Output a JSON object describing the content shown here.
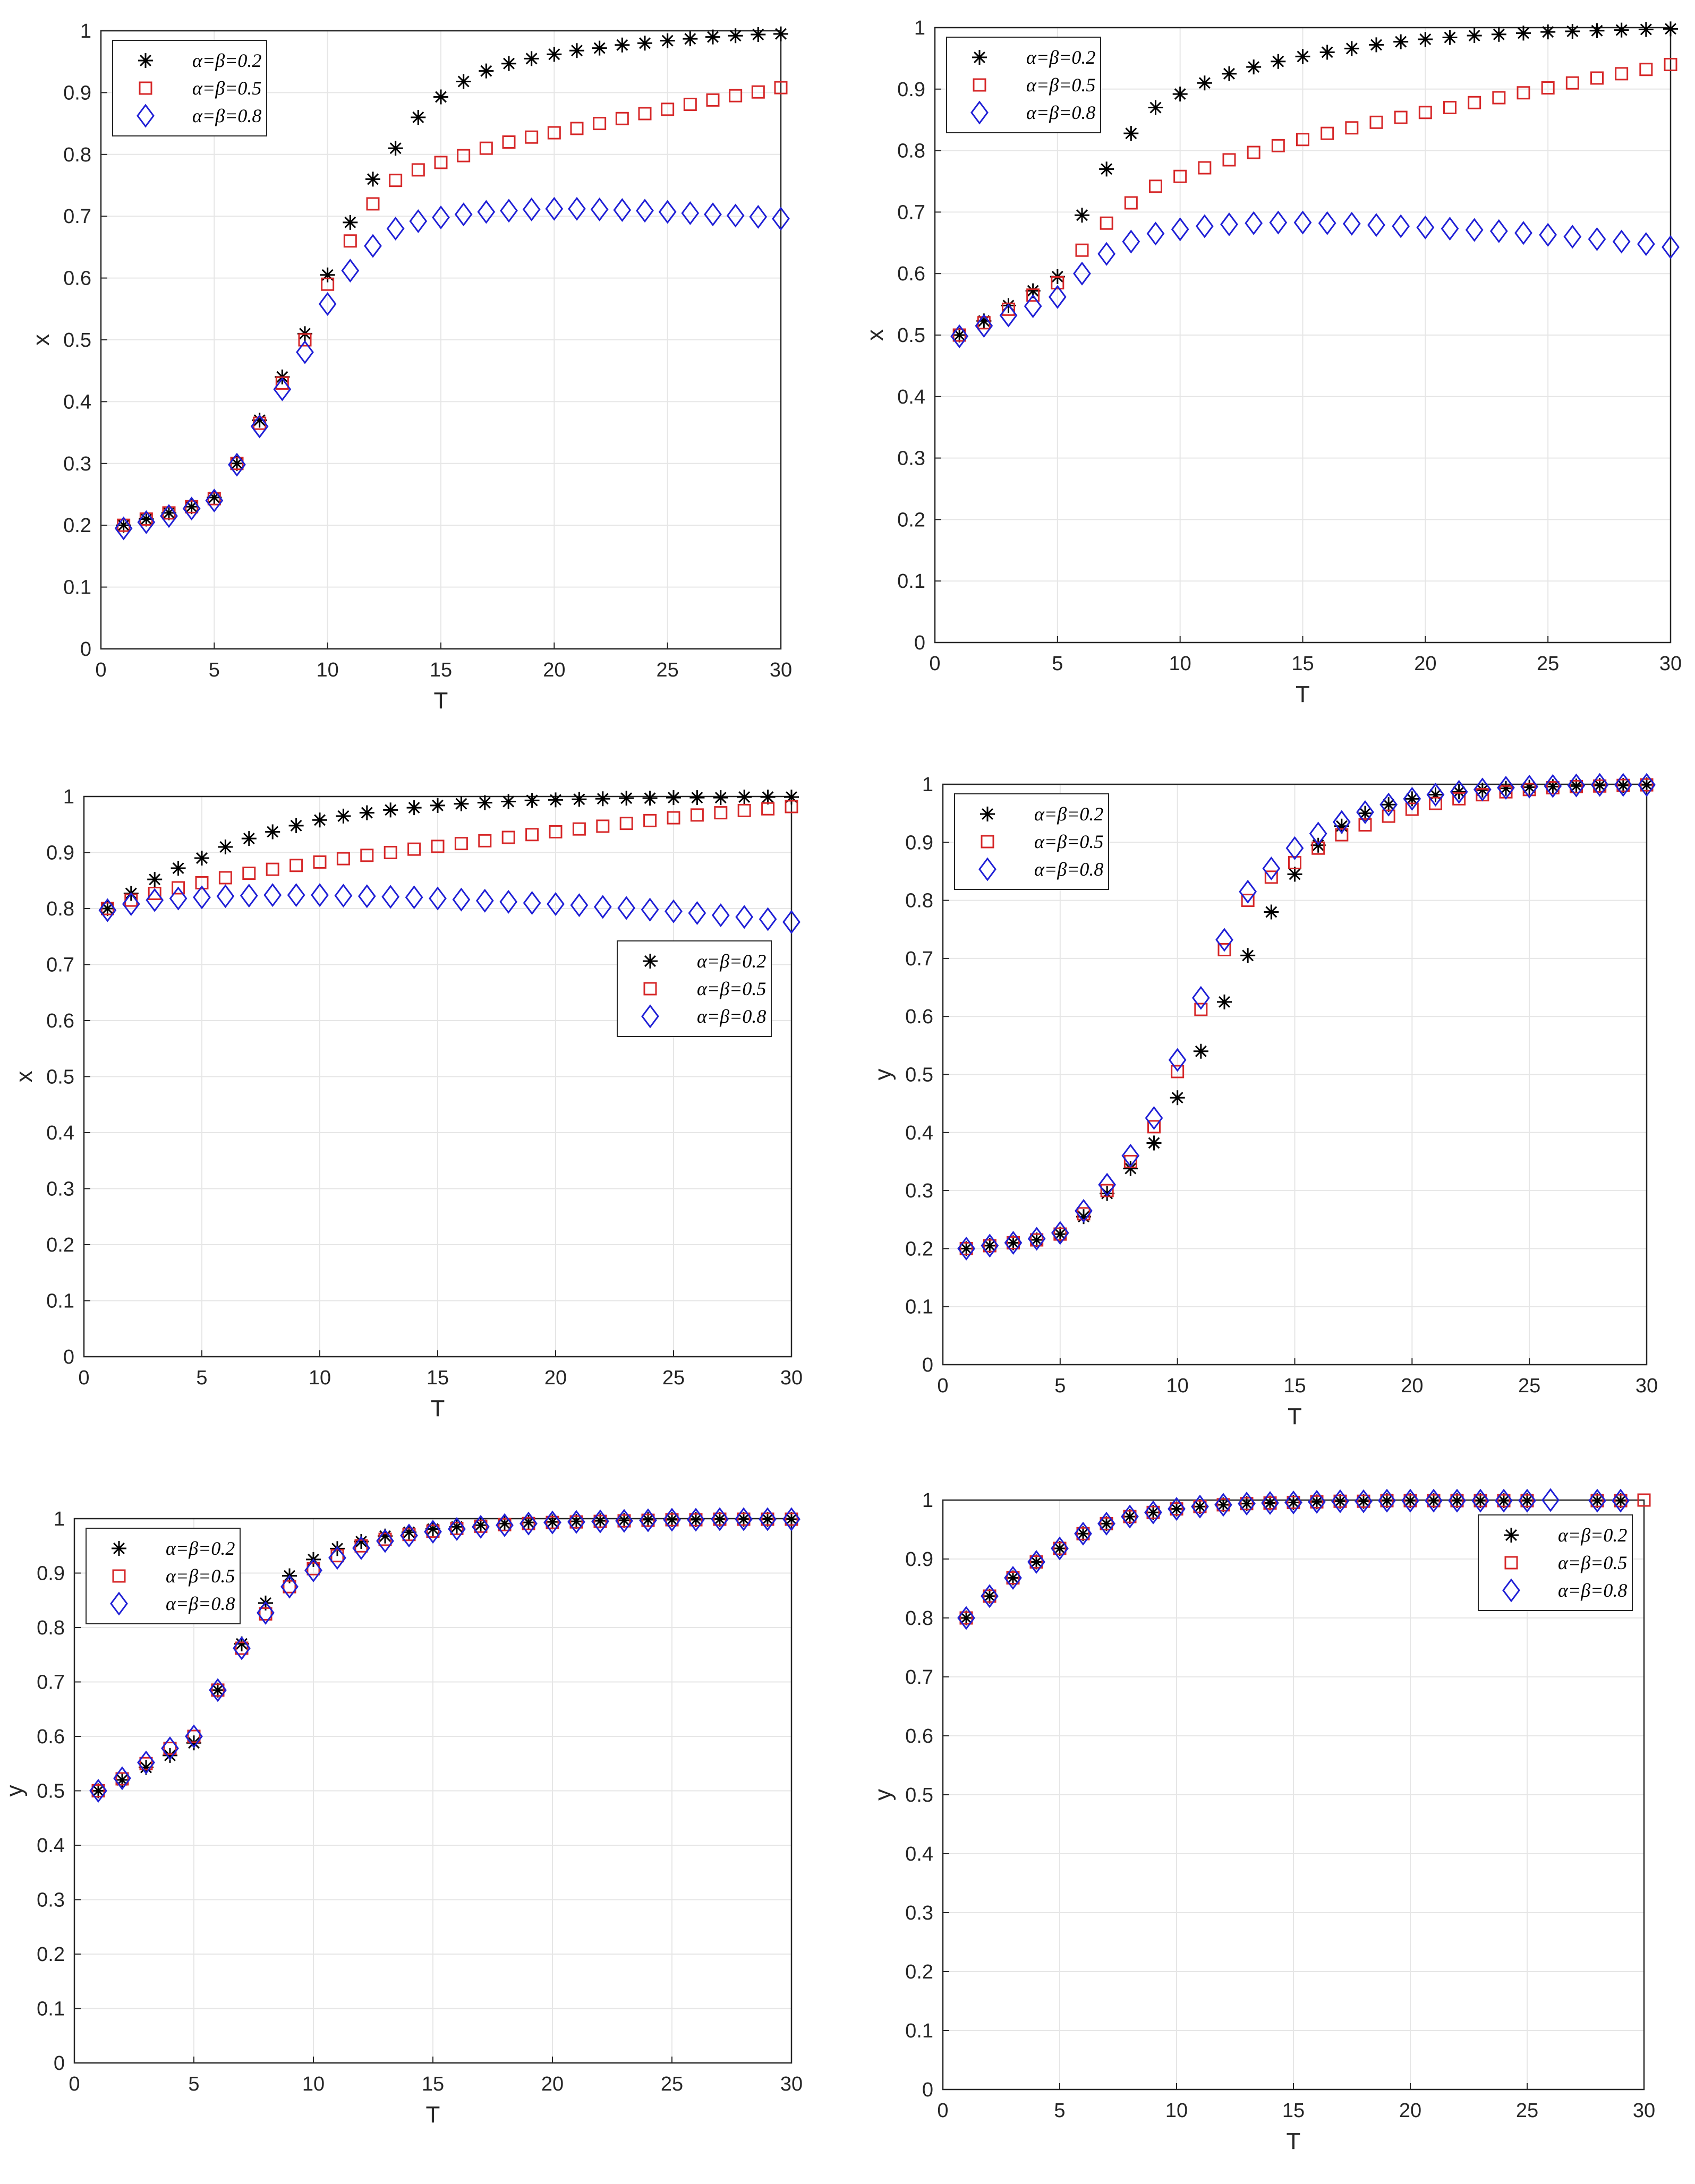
{
  "legend_labels": [
    "α=β=0.2",
    "α=β=0.5",
    "α=β=0.8"
  ],
  "colors": {
    "s02": "#000000",
    "s05": "#d62728",
    "s08": "#1f1fd6",
    "grid": "#e6e6e6",
    "axis": "#262626"
  },
  "markers": {
    "s02": "asterisk",
    "s05": "square",
    "s08": "diamond"
  },
  "chart_data": [
    {
      "type": "scatter",
      "id": "a",
      "xlabel": "T",
      "ylabel": "x",
      "xlim": [
        0,
        30
      ],
      "ylim": [
        0,
        1
      ],
      "xticks": [
        0,
        5,
        10,
        15,
        20,
        25,
        30
      ],
      "yticks": [
        0,
        0.1,
        0.2,
        0.3,
        0.4,
        0.5,
        0.6,
        0.7,
        0.8,
        0.9,
        1
      ],
      "legend": "top-left",
      "x": [
        1,
        2,
        3,
        4,
        5,
        6,
        7,
        8,
        9,
        10,
        11,
        12,
        13,
        14,
        15,
        16,
        17,
        18,
        19,
        20,
        21,
        22,
        23,
        24,
        25,
        26,
        27,
        28,
        29,
        30
      ],
      "series": [
        {
          "name": "α=β=0.2",
          "values": [
            0.2,
            0.21,
            0.22,
            0.23,
            0.245,
            0.3,
            0.37,
            0.44,
            0.51,
            0.605,
            0.69,
            0.76,
            0.81,
            0.86,
            0.893,
            0.918,
            0.935,
            0.947,
            0.955,
            0.962,
            0.968,
            0.972,
            0.977,
            0.98,
            0.984,
            0.987,
            0.99,
            0.992,
            0.994,
            0.995
          ]
        },
        {
          "name": "α=β=0.5",
          "values": [
            0.2,
            0.21,
            0.22,
            0.23,
            0.243,
            0.3,
            0.365,
            0.43,
            0.5,
            0.59,
            0.66,
            0.72,
            0.758,
            0.775,
            0.787,
            0.798,
            0.81,
            0.82,
            0.828,
            0.835,
            0.842,
            0.85,
            0.858,
            0.866,
            0.873,
            0.881,
            0.888,
            0.895,
            0.901,
            0.908
          ]
        },
        {
          "name": "α=β=0.8",
          "values": [
            0.195,
            0.205,
            0.215,
            0.227,
            0.24,
            0.298,
            0.36,
            0.42,
            0.48,
            0.558,
            0.612,
            0.652,
            0.68,
            0.692,
            0.698,
            0.703,
            0.707,
            0.709,
            0.711,
            0.712,
            0.712,
            0.711,
            0.71,
            0.709,
            0.707,
            0.705,
            0.703,
            0.701,
            0.699,
            0.696
          ]
        }
      ]
    },
    {
      "type": "scatter",
      "id": "b",
      "xlabel": "T",
      "ylabel": "x",
      "xlim": [
        0,
        30
      ],
      "ylim": [
        0,
        1
      ],
      "xticks": [
        0,
        5,
        10,
        15,
        20,
        25,
        30
      ],
      "yticks": [
        0,
        0.1,
        0.2,
        0.3,
        0.4,
        0.5,
        0.6,
        0.7,
        0.8,
        0.9,
        1
      ],
      "legend": "top-left",
      "x": [
        1,
        2,
        3,
        4,
        5,
        6,
        7,
        8,
        9,
        10,
        11,
        12,
        13,
        14,
        15,
        16,
        17,
        18,
        19,
        20,
        21,
        22,
        23,
        24,
        25,
        26,
        27,
        28,
        29,
        30
      ],
      "series": [
        {
          "name": "α=β=0.2",
          "values": [
            0.5,
            0.523,
            0.548,
            0.572,
            0.595,
            0.695,
            0.77,
            0.828,
            0.87,
            0.892,
            0.91,
            0.925,
            0.936,
            0.945,
            0.953,
            0.96,
            0.966,
            0.972,
            0.977,
            0.981,
            0.984,
            0.987,
            0.989,
            0.991,
            0.993,
            0.994,
            0.995,
            0.996,
            0.997,
            0.998
          ]
        },
        {
          "name": "α=β=0.5",
          "values": [
            0.5,
            0.52,
            0.542,
            0.565,
            0.585,
            0.638,
            0.682,
            0.715,
            0.742,
            0.758,
            0.772,
            0.785,
            0.797,
            0.808,
            0.818,
            0.828,
            0.837,
            0.846,
            0.854,
            0.862,
            0.87,
            0.878,
            0.886,
            0.894,
            0.902,
            0.91,
            0.918,
            0.925,
            0.932,
            0.94
          ]
        },
        {
          "name": "α=β=0.8",
          "values": [
            0.498,
            0.515,
            0.532,
            0.547,
            0.562,
            0.6,
            0.632,
            0.652,
            0.665,
            0.672,
            0.677,
            0.68,
            0.682,
            0.683,
            0.683,
            0.682,
            0.681,
            0.679,
            0.677,
            0.675,
            0.673,
            0.671,
            0.669,
            0.666,
            0.663,
            0.66,
            0.656,
            0.652,
            0.648,
            0.643
          ]
        }
      ]
    },
    {
      "type": "scatter",
      "id": "c",
      "xlabel": "T",
      "ylabel": "x",
      "xlim": [
        0,
        30
      ],
      "ylim": [
        0,
        1
      ],
      "xticks": [
        0,
        5,
        10,
        15,
        20,
        25,
        30
      ],
      "yticks": [
        0,
        0.1,
        0.2,
        0.3,
        0.4,
        0.5,
        0.6,
        0.7,
        0.8,
        0.9,
        1
      ],
      "legend": "right",
      "x": [
        1,
        2,
        3,
        4,
        5,
        6,
        7,
        8,
        9,
        10,
        11,
        12,
        13,
        14,
        15,
        16,
        17,
        18,
        19,
        20,
        21,
        22,
        23,
        24,
        25,
        26,
        27,
        28,
        29,
        30
      ],
      "series": [
        {
          "name": "α=β=0.2",
          "values": [
            0.8,
            0.827,
            0.852,
            0.872,
            0.89,
            0.91,
            0.925,
            0.937,
            0.948,
            0.958,
            0.965,
            0.971,
            0.976,
            0.98,
            0.984,
            0.987,
            0.989,
            0.991,
            0.993,
            0.994,
            0.995,
            0.996,
            0.997,
            0.997,
            0.998,
            0.998,
            0.998,
            0.999,
            0.999,
            0.999
          ]
        },
        {
          "name": "α=β=0.5",
          "values": [
            0.8,
            0.815,
            0.827,
            0.837,
            0.846,
            0.855,
            0.863,
            0.87,
            0.877,
            0.883,
            0.889,
            0.895,
            0.9,
            0.906,
            0.911,
            0.916,
            0.921,
            0.927,
            0.932,
            0.937,
            0.942,
            0.947,
            0.952,
            0.957,
            0.962,
            0.967,
            0.971,
            0.975,
            0.978,
            0.982
          ]
        },
        {
          "name": "α=β=0.8",
          "values": [
            0.797,
            0.808,
            0.815,
            0.818,
            0.82,
            0.822,
            0.823,
            0.824,
            0.824,
            0.824,
            0.823,
            0.822,
            0.821,
            0.82,
            0.818,
            0.816,
            0.814,
            0.812,
            0.81,
            0.808,
            0.806,
            0.803,
            0.801,
            0.798,
            0.795,
            0.792,
            0.788,
            0.785,
            0.781,
            0.776
          ]
        }
      ]
    },
    {
      "type": "scatter",
      "id": "d",
      "xlabel": "T",
      "ylabel": "y",
      "xlim": [
        0,
        30
      ],
      "ylim": [
        0,
        1
      ],
      "xticks": [
        0,
        5,
        10,
        15,
        20,
        25,
        30
      ],
      "yticks": [
        0,
        0.1,
        0.2,
        0.3,
        0.4,
        0.5,
        0.6,
        0.7,
        0.8,
        0.9,
        1
      ],
      "legend": "top-left",
      "x": [
        1,
        2,
        3,
        4,
        5,
        6,
        7,
        8,
        9,
        10,
        11,
        12,
        13,
        14,
        15,
        16,
        17,
        18,
        19,
        20,
        21,
        22,
        23,
        24,
        25,
        26,
        27,
        28,
        29,
        30
      ],
      "series": [
        {
          "name": "α=β=0.2",
          "values": [
            0.2,
            0.205,
            0.21,
            0.215,
            0.225,
            0.255,
            0.295,
            0.338,
            0.382,
            0.46,
            0.54,
            0.625,
            0.705,
            0.78,
            0.845,
            0.895,
            0.928,
            0.95,
            0.965,
            0.975,
            0.982,
            0.987,
            0.99,
            0.993,
            0.995,
            0.996,
            0.997,
            0.998,
            0.998,
            0.999
          ]
        },
        {
          "name": "α=β=0.5",
          "values": [
            0.2,
            0.205,
            0.21,
            0.215,
            0.225,
            0.26,
            0.3,
            0.35,
            0.41,
            0.505,
            0.612,
            0.715,
            0.8,
            0.84,
            0.865,
            0.89,
            0.913,
            0.93,
            0.945,
            0.957,
            0.967,
            0.975,
            0.982,
            0.987,
            0.991,
            0.994,
            0.996,
            0.997,
            0.998,
            0.999
          ]
        },
        {
          "name": "α=β=0.8",
          "values": [
            0.2,
            0.205,
            0.21,
            0.217,
            0.227,
            0.265,
            0.31,
            0.36,
            0.425,
            0.525,
            0.632,
            0.732,
            0.815,
            0.855,
            0.89,
            0.915,
            0.935,
            0.952,
            0.965,
            0.975,
            0.982,
            0.987,
            0.991,
            0.994,
            0.996,
            0.997,
            0.998,
            0.999,
            0.999,
            0.999
          ]
        }
      ]
    },
    {
      "type": "scatter",
      "id": "e",
      "xlabel": "T",
      "ylabel": "y",
      "xlim": [
        0,
        30
      ],
      "ylim": [
        0,
        1
      ],
      "xticks": [
        0,
        5,
        10,
        15,
        20,
        25,
        30
      ],
      "yticks": [
        0,
        0.1,
        0.2,
        0.3,
        0.4,
        0.5,
        0.6,
        0.7,
        0.8,
        0.9,
        1
      ],
      "legend": "top-left",
      "x": [
        1,
        2,
        3,
        4,
        5,
        6,
        7,
        8,
        9,
        10,
        11,
        12,
        13,
        14,
        15,
        16,
        17,
        18,
        19,
        20,
        21,
        22,
        23,
        24,
        25,
        26,
        27,
        28,
        29,
        30
      ],
      "series": [
        {
          "name": "α=β=0.2",
          "values": [
            0.5,
            0.52,
            0.543,
            0.565,
            0.588,
            0.685,
            0.77,
            0.845,
            0.895,
            0.925,
            0.945,
            0.958,
            0.968,
            0.975,
            0.981,
            0.985,
            0.988,
            0.991,
            0.993,
            0.994,
            0.995,
            0.996,
            0.997,
            0.998,
            0.998,
            0.998,
            0.999,
            0.999,
            0.999,
            0.999
          ]
        },
        {
          "name": "α=β=0.5",
          "values": [
            0.5,
            0.522,
            0.55,
            0.578,
            0.6,
            0.685,
            0.762,
            0.825,
            0.875,
            0.908,
            0.932,
            0.95,
            0.962,
            0.971,
            0.977,
            0.982,
            0.986,
            0.989,
            0.991,
            0.993,
            0.994,
            0.995,
            0.996,
            0.997,
            0.998,
            0.998,
            0.999,
            0.999,
            0.999,
            0.999
          ]
        },
        {
          "name": "α=β=0.8",
          "values": [
            0.5,
            0.523,
            0.552,
            0.578,
            0.6,
            0.685,
            0.762,
            0.827,
            0.875,
            0.905,
            0.928,
            0.946,
            0.959,
            0.969,
            0.976,
            0.981,
            0.985,
            0.988,
            0.991,
            0.993,
            0.994,
            0.995,
            0.996,
            0.997,
            0.998,
            0.998,
            0.999,
            0.999,
            0.999,
            0.999
          ]
        }
      ]
    },
    {
      "type": "scatter",
      "id": "f",
      "xlabel": "T",
      "ylabel": "y",
      "xlim": [
        0,
        30
      ],
      "ylim": [
        0,
        1
      ],
      "xticks": [
        0,
        5,
        10,
        15,
        20,
        25,
        30
      ],
      "yticks": [
        0,
        0.1,
        0.2,
        0.3,
        0.4,
        0.5,
        0.6,
        0.7,
        0.8,
        0.9,
        1
      ],
      "legend": "top-right",
      "x": [
        1,
        2,
        3,
        4,
        5,
        6,
        7,
        8,
        9,
        10,
        11,
        12,
        13,
        14,
        15,
        16,
        17,
        18,
        19,
        20,
        21,
        22,
        23,
        24,
        25,
        26,
        27,
        28,
        29,
        30
      ],
      "series": [
        {
          "name": "α=β=0.2",
          "values": [
            0.8,
            0.837,
            0.868,
            0.895,
            0.918,
            0.943,
            0.96,
            0.972,
            0.979,
            0.985,
            0.989,
            0.992,
            0.994,
            0.995,
            0.996,
            0.997,
            0.998,
            0.998,
            0.999,
            0.999,
            0.999,
            0.999,
            0.999,
            0.999,
            0.999,
            null,
            null,
            0.999,
            0.999,
            null
          ]
        },
        {
          "name": "α=β=0.5",
          "values": [
            0.8,
            0.837,
            0.868,
            0.895,
            0.918,
            0.943,
            0.96,
            0.972,
            0.979,
            0.985,
            0.989,
            0.992,
            0.994,
            0.995,
            0.996,
            0.997,
            0.998,
            0.998,
            0.999,
            0.999,
            0.999,
            0.999,
            0.999,
            0.999,
            0.999,
            null,
            null,
            0.999,
            0.999,
            1.0
          ]
        },
        {
          "name": "α=β=0.8",
          "values": [
            0.8,
            0.837,
            0.868,
            0.895,
            0.918,
            0.943,
            0.96,
            0.972,
            0.979,
            0.985,
            0.989,
            0.992,
            0.994,
            0.995,
            0.996,
            0.997,
            0.998,
            0.998,
            0.999,
            0.999,
            0.999,
            0.999,
            0.999,
            0.999,
            0.999,
            1.0,
            null,
            0.999,
            0.999,
            null
          ]
        }
      ]
    }
  ]
}
